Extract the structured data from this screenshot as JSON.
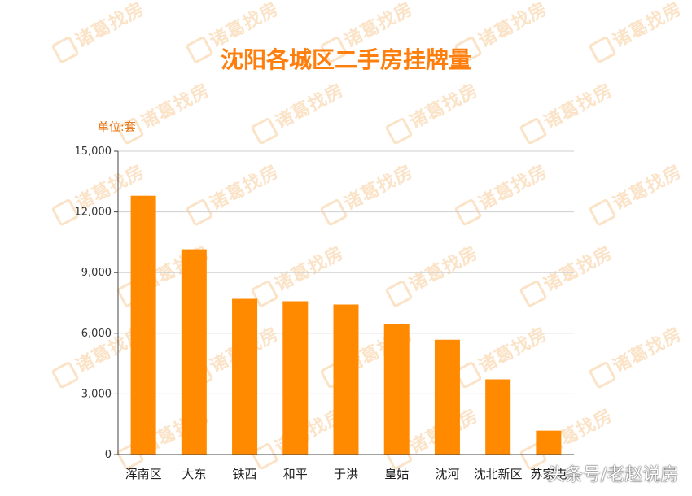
{
  "colors": {
    "bar": "#ff8a00",
    "title": "#ff7f0e",
    "grid": "#cfcfcf",
    "axis": "#444444"
  },
  "watermark": {
    "text": "诸葛找房"
  },
  "footer": {
    "text": "头条号/老赵说房"
  },
  "chart_data": {
    "type": "bar",
    "title": "沈阳各城区二手房挂牌量",
    "ylabel": "单位:套",
    "xlabel": "",
    "ylim": [
      0,
      15000
    ],
    "yticks": [
      0,
      3000,
      6000,
      9000,
      12000,
      15000
    ],
    "ytick_labels": [
      "0",
      "3,000",
      "6,000",
      "9,000",
      "12,000",
      "15,000"
    ],
    "grid": true,
    "categories": [
      "浑南区",
      "大东",
      "铁西",
      "和平",
      "于洪",
      "皇姑",
      "沈河",
      "沈北新区",
      "苏家屯"
    ],
    "values": [
      12800,
      10150,
      7700,
      7580,
      7420,
      6450,
      5680,
      3720,
      1180
    ]
  }
}
